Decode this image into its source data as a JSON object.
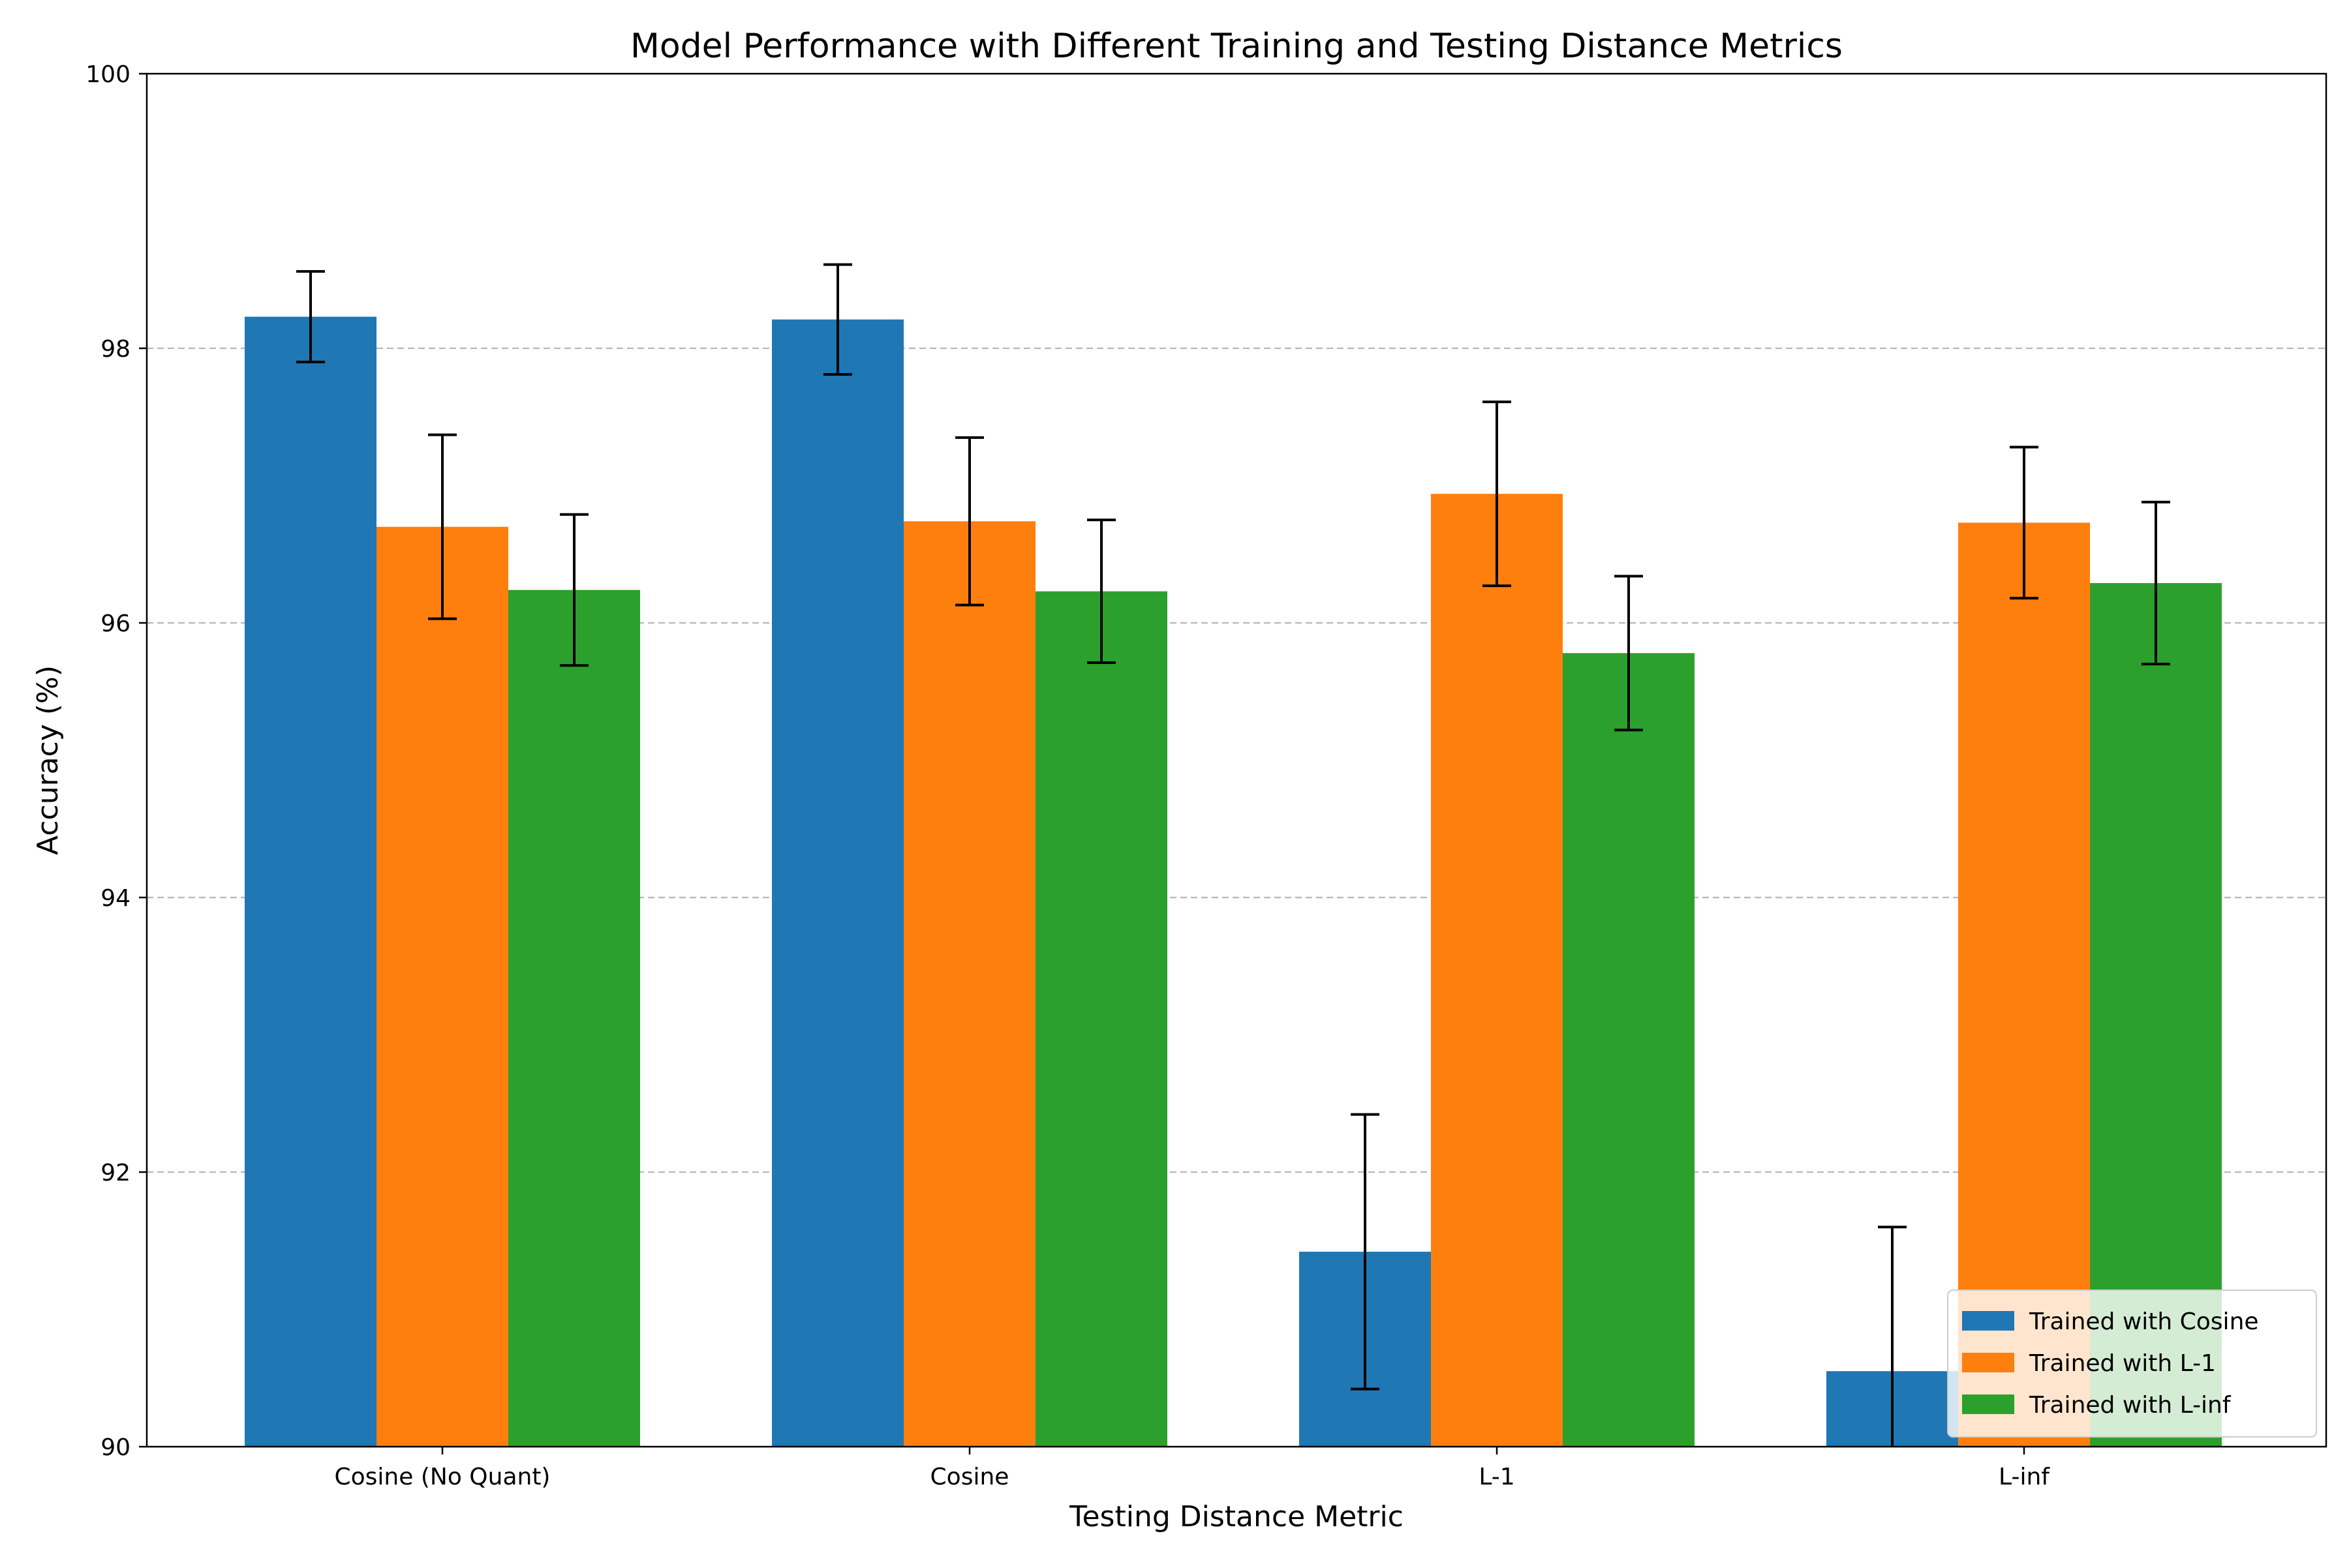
{
  "chart_data": {
    "type": "bar",
    "title": "Model Performance with Different Training and Testing Distance Metrics",
    "xlabel": "Testing Distance Metric",
    "ylabel": "Accuracy (%)",
    "ylim": [
      90,
      100
    ],
    "yticks": [
      90,
      92,
      94,
      96,
      98,
      100
    ],
    "grid": "y-dashed",
    "legend_position": "lower-right",
    "categories": [
      "Cosine (No Quant)",
      "Cosine",
      "L-1",
      "L-inf"
    ],
    "series": [
      {
        "name": "Trained with Cosine",
        "color": "#1f77b4",
        "values": [
          98.23,
          98.21,
          91.42,
          90.55
        ],
        "errors": [
          0.33,
          0.4,
          1.0,
          1.05
        ]
      },
      {
        "name": "Trained with L-1",
        "color": "#ff7f0e",
        "values": [
          96.7,
          96.74,
          96.94,
          96.73
        ],
        "errors": [
          0.67,
          0.61,
          0.67,
          0.55
        ]
      },
      {
        "name": "Trained with L-inf",
        "color": "#2ca02c",
        "values": [
          96.24,
          96.23,
          95.78,
          96.29
        ],
        "errors": [
          0.55,
          0.52,
          0.56,
          0.59
        ]
      }
    ]
  }
}
